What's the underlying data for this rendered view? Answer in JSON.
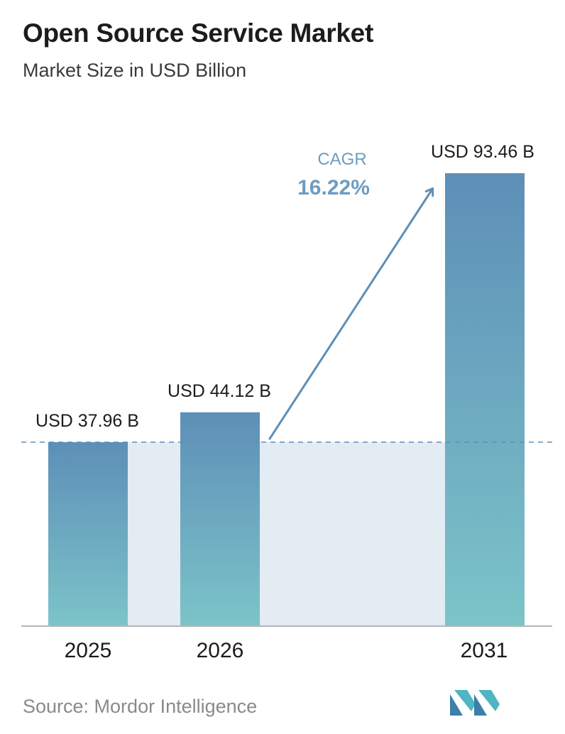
{
  "header": {
    "title": "Open Source Service Market",
    "subtitle": "Market Size in USD Billion"
  },
  "chart_data": {
    "type": "bar",
    "categories": [
      "2025",
      "2026",
      "2031"
    ],
    "values": [
      37.96,
      44.12,
      93.46
    ],
    "data_labels": [
      "USD 37.96 B",
      "USD 44.12 B",
      "USD 93.46 B"
    ],
    "ylim": [
      0,
      95
    ],
    "grid": false,
    "legend": "none",
    "annotation": {
      "label": "CAGR",
      "value": "16.22%"
    },
    "reference_line_value": 37.96
  },
  "colors": {
    "bar_top": "#5d8fb7",
    "bar_bottom": "#7cc4c9",
    "band": "#e3ebf3",
    "arrow": "#5d8fb7",
    "cagr_label": "#6f9cbf",
    "cagr_value": "#6f9cbf",
    "axis": "#b5b5b5",
    "text": "#1c1c1c"
  },
  "footer": {
    "source": "Source:  Mordor Intelligence"
  },
  "logo": {
    "icon": "mordor-intelligence-logo-icon"
  }
}
